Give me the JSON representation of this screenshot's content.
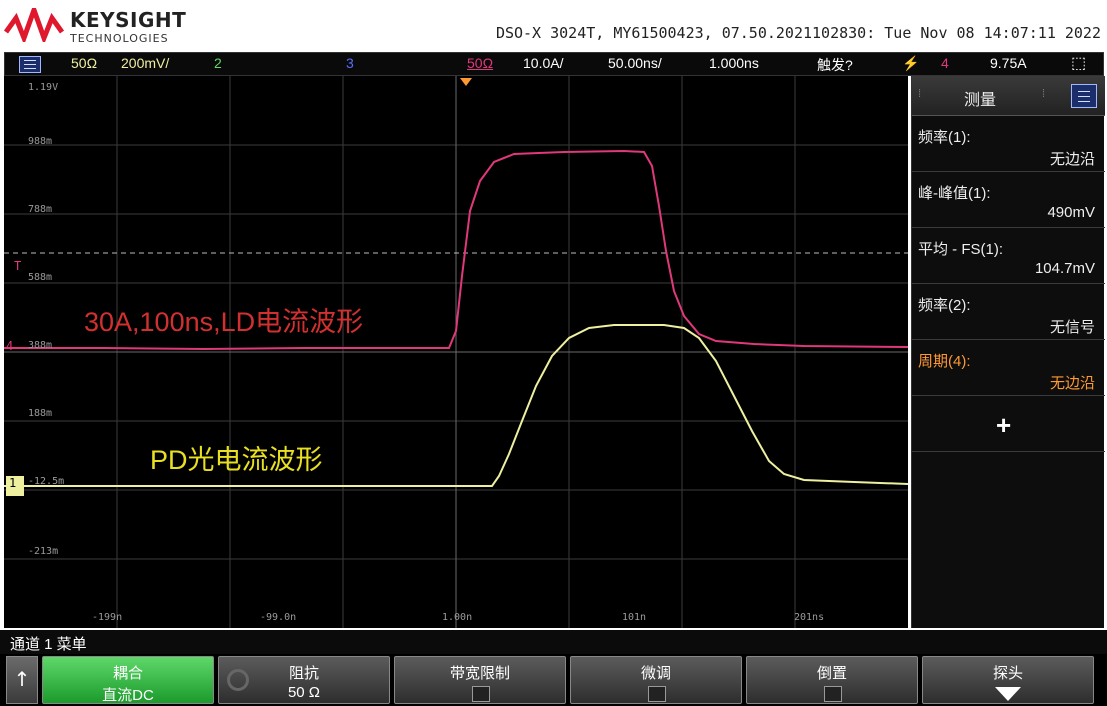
{
  "header": {
    "brand": "KEYSIGHT",
    "brand_sub": "TECHNOLOGIES",
    "device_info": "DSO-X 3024T, MY61500423, 07.50.2021102830: Tue Nov 08 14:07:11 2022"
  },
  "status_bar": {
    "ch1_impedance": "50Ω",
    "ch1_scale": "200mV/",
    "ch2_label": "2",
    "ch3_label": "3",
    "ch4_impedance": "50Ω",
    "ch4_scale": "10.0A/",
    "timebase": "50.00ns/",
    "delay": "1.000ns",
    "trigger_status": "触发?",
    "trigger_channel": "4",
    "trigger_level": "9.75A"
  },
  "screen": {
    "y_labels": [
      "1.19V",
      "988m",
      "788m",
      "588m",
      "388m",
      "188m",
      "-12.5m",
      "-213m"
    ],
    "x_labels": [
      "-199n",
      "-99.0n",
      "1.00n",
      "101n",
      "201ns"
    ],
    "ld_label": "30A,100ns,LD电流波形",
    "pd_label": "PD光电流波形",
    "ch1_marker": "1",
    "ch4_marker": "4",
    "trigger_marker": "T"
  },
  "measurements": {
    "title": "测量",
    "items": [
      {
        "name": "频率(1):",
        "value": "无边沿",
        "color": "#eeeeee"
      },
      {
        "name": "峰-峰值(1):",
        "value": "490mV",
        "color": "#eeeeee"
      },
      {
        "name": "平均 - FS(1):",
        "value": "104.7mV",
        "color": "#eeeeee"
      },
      {
        "name": "频率(2):",
        "value": "无信号",
        "color": "#eeeeee"
      },
      {
        "name": "周期(4):",
        "value": "无边沿",
        "color": "#ff9933"
      }
    ],
    "add_label": "+"
  },
  "colors": {
    "ch1": "#eef0a0",
    "ch2": "#5fd86a",
    "ch3": "#5a6cff",
    "ch4": "#e0387a",
    "ld_label": "#d23030",
    "pd_label": "#e8e020"
  },
  "menu": {
    "title": "通道 1 菜单",
    "up_arrow": "↑",
    "softkeys": [
      {
        "label": "耦合",
        "value": "直流DC"
      },
      {
        "label": "阻抗",
        "value": "50 Ω"
      },
      {
        "label": "带宽限制",
        "value": ""
      },
      {
        "label": "微调",
        "value": ""
      },
      {
        "label": "倒置",
        "value": ""
      },
      {
        "label": "探头",
        "value": ""
      }
    ]
  }
}
